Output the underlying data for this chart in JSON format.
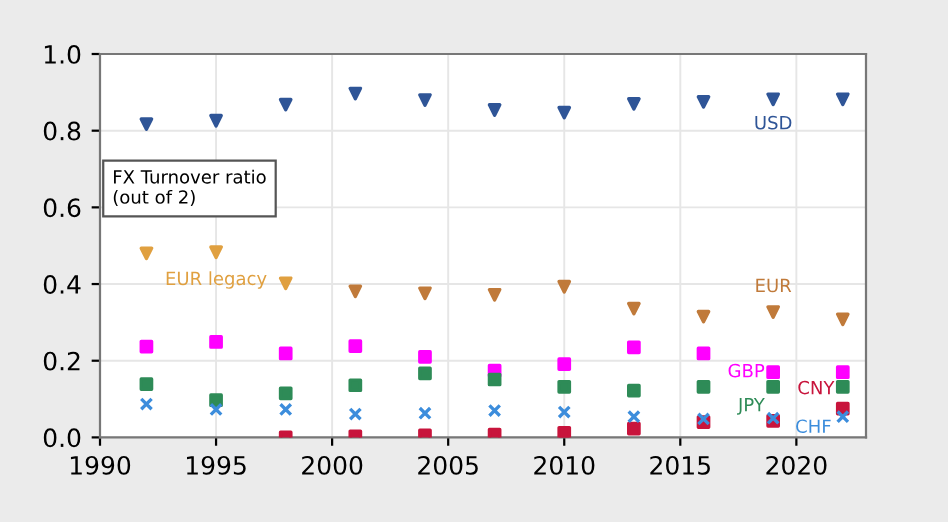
{
  "chart_data": {
    "type": "scatter",
    "x": [
      1992,
      1995,
      1998,
      2001,
      2004,
      2007,
      2010,
      2013,
      2016,
      2019,
      2022
    ],
    "series": [
      {
        "name": "USD",
        "color": "#2f5597",
        "marker": "triangle",
        "values": [
          0.817,
          0.826,
          0.868,
          0.897,
          0.88,
          0.854,
          0.847,
          0.87,
          0.875,
          0.882,
          0.882
        ]
      },
      {
        "name": "EUR legacy",
        "color": "#e0a040",
        "marker": "triangle",
        "values": [
          0.48,
          0.483,
          0.402,
          null,
          null,
          null,
          null,
          null,
          null,
          null,
          null
        ]
      },
      {
        "name": "EUR",
        "color": "#c07a3a",
        "marker": "triangle",
        "values": [
          null,
          null,
          null,
          0.381,
          0.376,
          0.372,
          0.393,
          0.336,
          0.315,
          0.327,
          0.308
        ]
      },
      {
        "name": "GBP",
        "color": "#ff00ff",
        "marker": "square",
        "values": [
          0.237,
          0.249,
          0.219,
          0.238,
          0.21,
          0.174,
          0.191,
          0.235,
          0.219,
          0.17,
          0.17
        ]
      },
      {
        "name": "JPY",
        "color": "#2e8b57",
        "marker": "square",
        "values": [
          0.139,
          0.097,
          0.115,
          0.136,
          0.167,
          0.151,
          0.132,
          0.122,
          0.132,
          0.132,
          0.132
        ]
      },
      {
        "name": "CNY",
        "color": "#c8143c",
        "marker": "square",
        "values": [
          null,
          null,
          0.0,
          0.003,
          0.005,
          0.007,
          0.012,
          0.023,
          0.04,
          0.043,
          0.075
        ]
      },
      {
        "name": "CHF",
        "color": "#3c8ddc",
        "marker": "cross",
        "values": [
          0.087,
          0.073,
          0.073,
          0.061,
          0.063,
          0.07,
          0.066,
          0.054,
          0.048,
          0.05,
          0.054
        ]
      }
    ],
    "xlim": [
      1990,
      2023
    ],
    "ylim": [
      0,
      1
    ],
    "xticks": [
      1990,
      1995,
      2000,
      2005,
      2010,
      2015,
      2020
    ],
    "yticks": [
      {
        "value": 0,
        "label": "0.0"
      },
      {
        "value": 0.2,
        "label": "0.2"
      },
      {
        "value": 0.4,
        "label": "0.4"
      },
      {
        "value": 0.6,
        "label": "0.6"
      },
      {
        "value": 0.8,
        "label": "0.8"
      },
      {
        "value": 1,
        "label": "1.0"
      }
    ],
    "grid": true,
    "legend": false,
    "annotations": [
      "FX Turnover ratio\n(out of 2)"
    ]
  }
}
